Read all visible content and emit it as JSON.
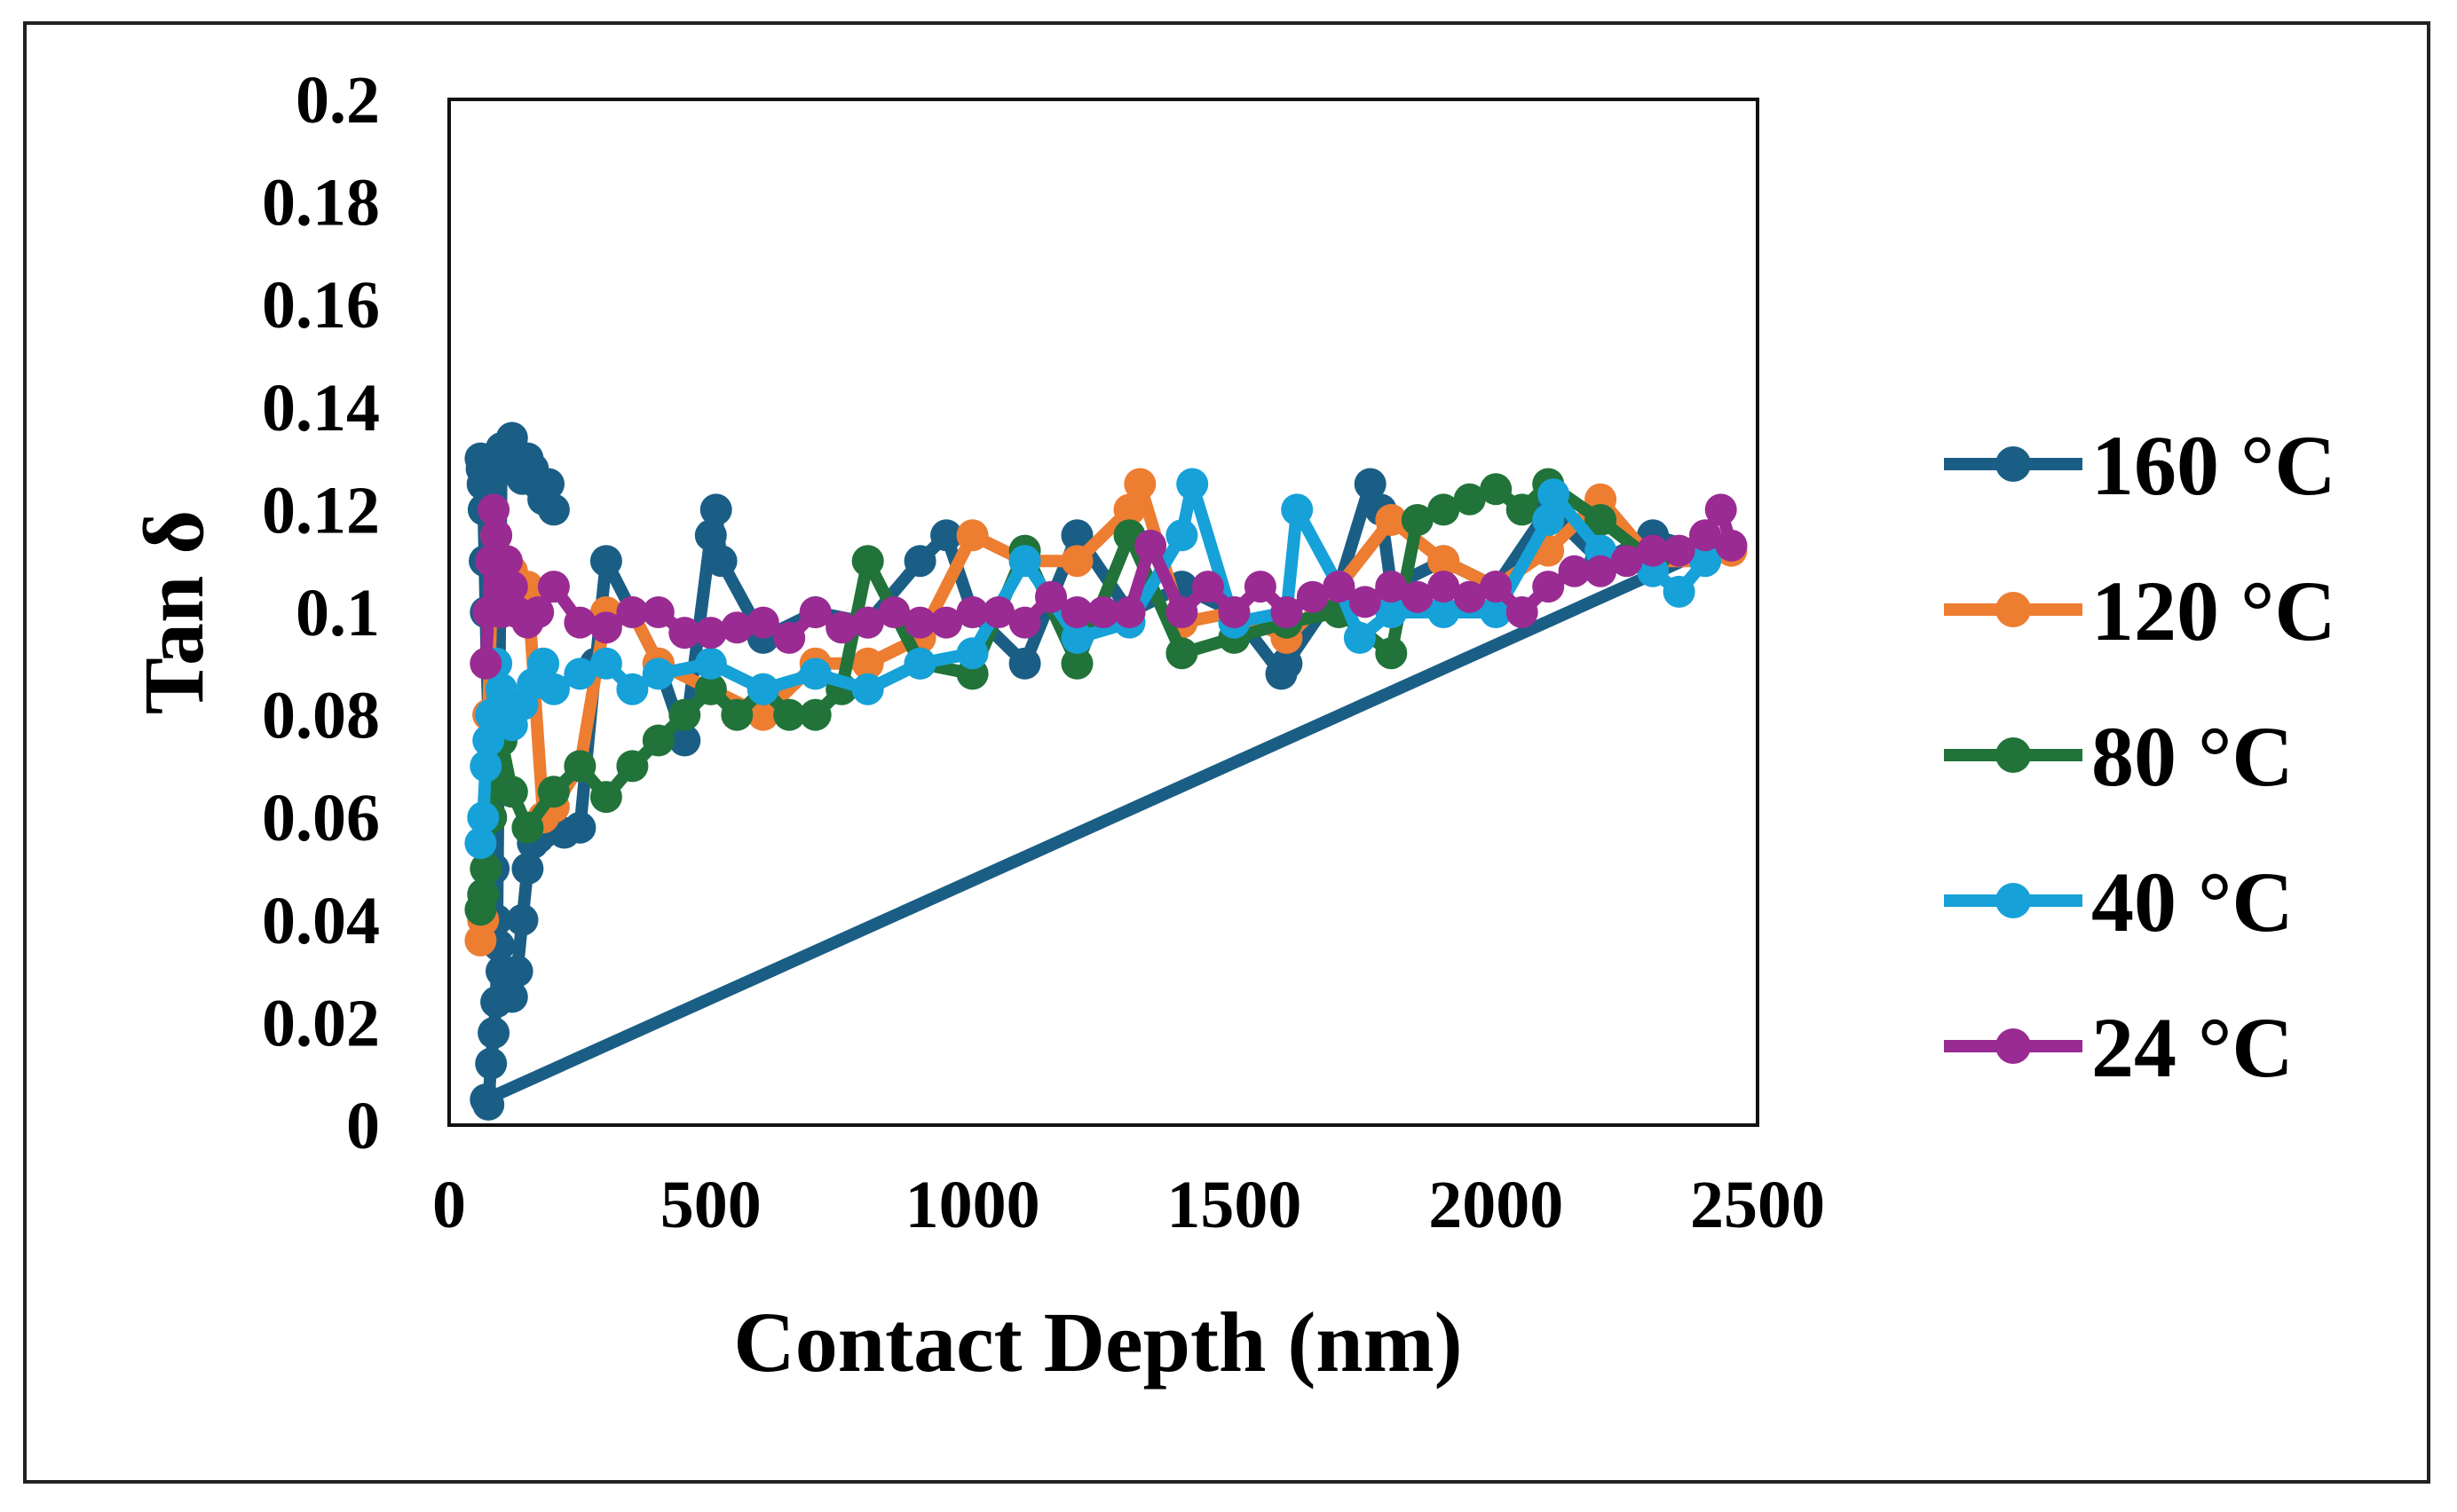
{
  "chart_data": {
    "type": "scatter",
    "title": "",
    "xlabel": "Contact Depth (nm)",
    "ylabel": "Tan δ",
    "xlim": [
      0,
      2500
    ],
    "ylim": [
      0,
      0.2
    ],
    "xticks": [
      0,
      500,
      1000,
      1500,
      2000,
      2500
    ],
    "yticks": [
      0,
      0.02,
      0.04,
      0.06,
      0.08,
      0.1,
      0.12,
      0.14,
      0.16,
      0.18,
      0.2
    ],
    "xtick_labels": [
      "0",
      "500",
      "1000",
      "1500",
      "2000",
      "2500"
    ],
    "ytick_labels": [
      "0",
      "0.02",
      "0.04",
      "0.06",
      "0.08",
      "0.1",
      "0.12",
      "0.14",
      "0.16",
      "0.18",
      "0.2"
    ],
    "grid": false,
    "legend_position": "right",
    "series": [
      {
        "name": "160 °C",
        "color": "#1b5e85",
        "x": [
          60,
          62,
          64,
          66,
          68,
          70,
          72,
          75,
          78,
          80,
          85,
          90,
          95,
          100,
          110,
          120,
          130,
          140,
          150,
          160,
          170,
          180,
          200,
          220,
          250,
          280,
          300,
          350,
          400,
          450,
          500,
          510,
          520,
          600,
          700,
          800,
          900,
          950,
          1000,
          1100,
          1200,
          1300,
          1400,
          1500,
          1590,
          1600,
          1700,
          1760,
          1780,
          1800,
          1900,
          2000,
          2100,
          2200,
          2300,
          2400,
          70,
          75,
          80,
          85,
          90,
          100,
          110,
          120,
          130,
          140,
          150,
          160,
          170,
          180,
          190,
          200
        ],
        "y": [
          0.13,
          0.128,
          0.125,
          0.12,
          0.11,
          0.1,
          0.09,
          0.08,
          0.07,
          0.06,
          0.05,
          0.04,
          0.035,
          0.03,
          0.028,
          0.025,
          0.03,
          0.04,
          0.05,
          0.055,
          0.056,
          0.057,
          0.058,
          0.057,
          0.058,
          0.09,
          0.11,
          0.1,
          0.09,
          0.075,
          0.115,
          0.12,
          0.11,
          0.095,
          0.1,
          0.098,
          0.11,
          0.115,
          0.1,
          0.09,
          0.115,
          0.1,
          0.105,
          0.1,
          0.088,
          0.09,
          0.105,
          0.125,
          0.12,
          0.105,
          0.11,
          0.105,
          0.12,
          0.11,
          0.115,
          0.112,
          0.005,
          0.004,
          0.012,
          0.018,
          0.024,
          0.132,
          0.13,
          0.134,
          0.128,
          0.126,
          0.13,
          0.128,
          0.125,
          0.122,
          0.125,
          0.12
        ]
      },
      {
        "name": "120 °C",
        "color": "#ed7d31",
        "x": [
          60,
          65,
          70,
          75,
          80,
          90,
          100,
          120,
          150,
          180,
          200,
          250,
          300,
          350,
          400,
          500,
          600,
          700,
          800,
          900,
          1000,
          1100,
          1200,
          1300,
          1320,
          1400,
          1500,
          1600,
          1700,
          1800,
          1900,
          2000,
          2100,
          2200,
          2300,
          2400,
          2450
        ],
        "y": [
          0.036,
          0.04,
          0.06,
          0.08,
          0.1,
          0.115,
          0.11,
          0.108,
          0.105,
          0.06,
          0.062,
          0.07,
          0.1,
          0.1,
          0.09,
          0.085,
          0.08,
          0.09,
          0.09,
          0.095,
          0.115,
          0.11,
          0.11,
          0.12,
          0.125,
          0.098,
          0.1,
          0.095,
          0.105,
          0.118,
          0.11,
          0.105,
          0.112,
          0.122,
          0.11,
          0.11,
          0.112
        ]
      },
      {
        "name": "80 °C",
        "color": "#217339",
        "x": [
          60,
          65,
          70,
          80,
          90,
          100,
          120,
          150,
          200,
          250,
          300,
          350,
          400,
          450,
          500,
          550,
          600,
          650,
          700,
          750,
          800,
          900,
          1000,
          1100,
          1200,
          1300,
          1400,
          1500,
          1600,
          1700,
          1800,
          1850,
          1900,
          1950,
          2000,
          2050,
          2100,
          2200,
          2300,
          2400
        ],
        "y": [
          0.042,
          0.045,
          0.05,
          0.06,
          0.07,
          0.075,
          0.065,
          0.058,
          0.065,
          0.07,
          0.064,
          0.07,
          0.075,
          0.08,
          0.085,
          0.08,
          0.085,
          0.08,
          0.08,
          0.085,
          0.11,
          0.09,
          0.088,
          0.112,
          0.09,
          0.115,
          0.092,
          0.095,
          0.098,
          0.1,
          0.092,
          0.118,
          0.12,
          0.122,
          0.124,
          0.12,
          0.125,
          0.118,
          0.11,
          0.112
        ]
      },
      {
        "name": "40 °C",
        "color": "#16a1d8",
        "x": [
          60,
          65,
          70,
          75,
          80,
          90,
          100,
          110,
          120,
          140,
          160,
          180,
          200,
          250,
          300,
          350,
          400,
          500,
          600,
          700,
          800,
          900,
          1000,
          1100,
          1200,
          1300,
          1400,
          1420,
          1500,
          1600,
          1620,
          1700,
          1740,
          1800,
          1900,
          2000,
          2100,
          2110,
          2200,
          2300,
          2350,
          2400
        ],
        "y": [
          0.055,
          0.06,
          0.07,
          0.075,
          0.08,
          0.09,
          0.085,
          0.08,
          0.078,
          0.082,
          0.086,
          0.09,
          0.085,
          0.088,
          0.09,
          0.085,
          0.088,
          0.09,
          0.085,
          0.088,
          0.085,
          0.09,
          0.092,
          0.11,
          0.095,
          0.098,
          0.115,
          0.125,
          0.098,
          0.1,
          0.12,
          0.105,
          0.095,
          0.1,
          0.1,
          0.1,
          0.118,
          0.123,
          0.112,
          0.108,
          0.104,
          0.11
        ]
      },
      {
        "name": "24 °C",
        "color": "#9a2b93",
        "x": [
          70,
          75,
          80,
          85,
          90,
          95,
          100,
          110,
          120,
          130,
          150,
          170,
          200,
          250,
          300,
          350,
          400,
          450,
          500,
          550,
          600,
          650,
          700,
          750,
          800,
          850,
          900,
          950,
          1000,
          1050,
          1100,
          1150,
          1200,
          1250,
          1300,
          1340,
          1400,
          1450,
          1500,
          1550,
          1600,
          1650,
          1700,
          1750,
          1800,
          1850,
          1900,
          1950,
          2000,
          2050,
          2100,
          2150,
          2200,
          2250,
          2300,
          2350,
          2400,
          2430,
          2450
        ],
        "y": [
          0.09,
          0.1,
          0.11,
          0.12,
          0.115,
          0.105,
          0.1,
          0.11,
          0.105,
          0.1,
          0.098,
          0.1,
          0.105,
          0.098,
          0.097,
          0.1,
          0.1,
          0.096,
          0.096,
          0.097,
          0.098,
          0.095,
          0.1,
          0.097,
          0.098,
          0.1,
          0.098,
          0.098,
          0.1,
          0.1,
          0.098,
          0.103,
          0.1,
          0.1,
          0.1,
          0.113,
          0.1,
          0.105,
          0.1,
          0.105,
          0.1,
          0.103,
          0.105,
          0.102,
          0.105,
          0.103,
          0.105,
          0.103,
          0.105,
          0.1,
          0.105,
          0.108,
          0.108,
          0.11,
          0.112,
          0.112,
          0.115,
          0.12,
          0.113
        ]
      }
    ]
  }
}
